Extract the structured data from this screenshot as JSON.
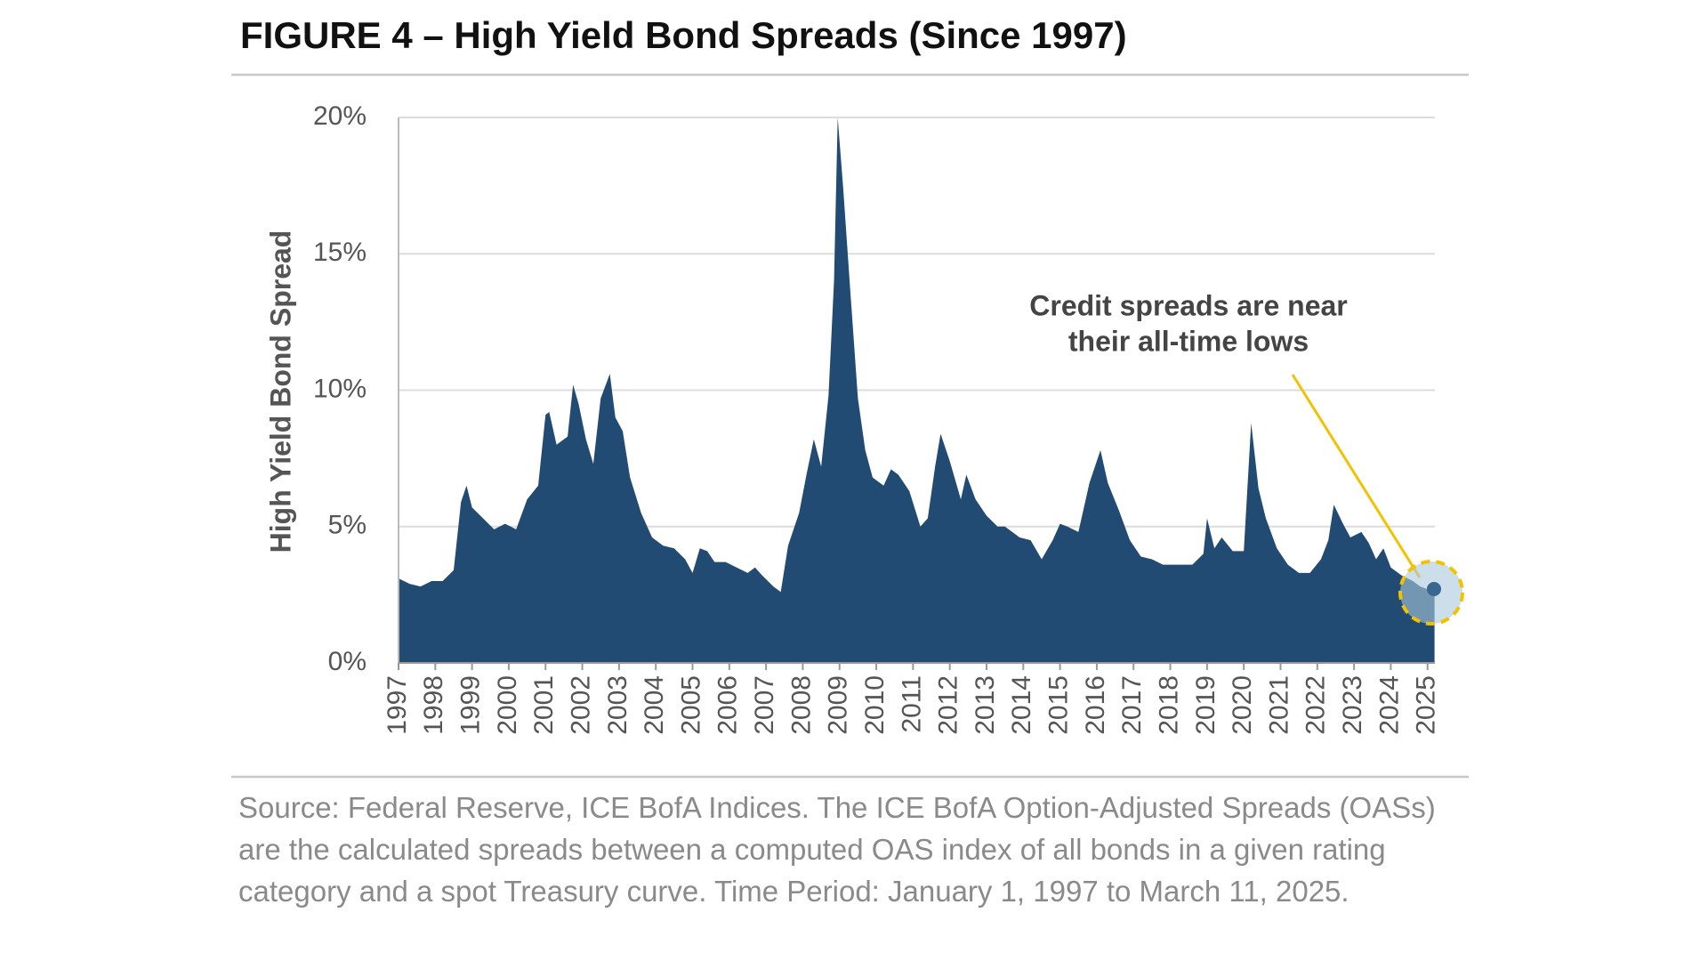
{
  "chart_data": {
    "type": "area",
    "title": "FIGURE 4 – High Yield Bond Spreads  (Since 1997)",
    "y_label": "High Yield Bond Spread",
    "annotation": [
      "Credit spreads are near",
      "their all-time lows"
    ],
    "source": "Source: Federal Reserve, ICE BofA Indices. The ICE BofA Option-Adjusted Spreads (OASs) are the calculated spreads between a computed OAS index of all bonds in a given rating category and a spot Treasury curve. Time Period: January 1, 1997 to March 11, 2025.",
    "color": "#224b74",
    "grid": true,
    "xlim": [
      1997,
      2025.2
    ],
    "xticks": [
      1997,
      1998,
      1999,
      2000,
      2001,
      2002,
      2003,
      2004,
      2005,
      2006,
      2007,
      2008,
      2009,
      2010,
      2011,
      2012,
      2013,
      2014,
      2015,
      2016,
      2017,
      2018,
      2019,
      2020,
      2021,
      2022,
      2023,
      2024,
      2025
    ],
    "ylim": [
      0,
      20
    ],
    "yticks": [
      {
        "value": 0,
        "label": "0%"
      },
      {
        "value": 5,
        "label": "5%"
      },
      {
        "value": 10,
        "label": "10%"
      },
      {
        "value": 15,
        "label": "15%"
      },
      {
        "value": 20,
        "label": "20%"
      }
    ],
    "x": [
      1997.0,
      1997.3,
      1997.6,
      1997.9,
      1998.2,
      1998.5,
      1998.7,
      1998.85,
      1999.0,
      1999.3,
      1999.6,
      1999.9,
      2000.2,
      2000.5,
      2000.8,
      2001.0,
      2001.1,
      2001.3,
      2001.6,
      2001.75,
      2001.9,
      2002.1,
      2002.3,
      2002.5,
      2002.75,
      2002.9,
      2003.1,
      2003.3,
      2003.6,
      2003.9,
      2004.2,
      2004.5,
      2004.8,
      2005.0,
      2005.2,
      2005.4,
      2005.6,
      2005.9,
      2006.2,
      2006.5,
      2006.7,
      2006.9,
      2007.2,
      2007.4,
      2007.6,
      2007.9,
      2008.1,
      2008.3,
      2008.5,
      2008.7,
      2008.85,
      2008.95,
      2009.1,
      2009.3,
      2009.5,
      2009.7,
      2009.9,
      2010.2,
      2010.4,
      2010.6,
      2010.9,
      2011.2,
      2011.4,
      2011.6,
      2011.75,
      2012.0,
      2012.3,
      2012.45,
      2012.7,
      2013.0,
      2013.3,
      2013.5,
      2013.9,
      2014.2,
      2014.5,
      2014.8,
      2015.0,
      2015.2,
      2015.5,
      2015.8,
      2016.1,
      2016.3,
      2016.6,
      2016.9,
      2017.2,
      2017.5,
      2017.8,
      2018.0,
      2018.3,
      2018.6,
      2018.9,
      2019.0,
      2019.2,
      2019.4,
      2019.7,
      2020.0,
      2020.2,
      2020.4,
      2020.6,
      2020.9,
      2021.2,
      2021.5,
      2021.8,
      2022.1,
      2022.3,
      2022.45,
      2022.7,
      2022.9,
      2023.2,
      2023.4,
      2023.6,
      2023.8,
      2024.0,
      2024.3,
      2024.6,
      2024.8,
      2025.0,
      2025.19
    ],
    "values": [
      3.1,
      2.9,
      2.8,
      3.0,
      3.0,
      3.4,
      5.9,
      6.5,
      5.7,
      5.3,
      4.9,
      5.1,
      4.9,
      6.0,
      6.5,
      9.1,
      9.2,
      8.0,
      8.3,
      10.2,
      9.5,
      8.2,
      7.3,
      9.7,
      10.6,
      9.0,
      8.5,
      6.8,
      5.5,
      4.6,
      4.3,
      4.2,
      3.8,
      3.3,
      4.2,
      4.1,
      3.7,
      3.7,
      3.5,
      3.3,
      3.5,
      3.2,
      2.8,
      2.6,
      4.3,
      5.5,
      6.9,
      8.2,
      7.2,
      9.8,
      14.0,
      20.0,
      17.4,
      13.5,
      9.7,
      7.8,
      6.8,
      6.5,
      7.1,
      6.9,
      6.3,
      5.0,
      5.3,
      7.2,
      8.4,
      7.4,
      6.0,
      6.9,
      6.0,
      5.4,
      5.0,
      5.0,
      4.6,
      4.5,
      3.8,
      4.5,
      5.1,
      5.0,
      4.8,
      6.6,
      7.8,
      6.6,
      5.6,
      4.5,
      3.9,
      3.8,
      3.6,
      3.6,
      3.6,
      3.6,
      4.0,
      5.3,
      4.2,
      4.6,
      4.1,
      4.1,
      8.8,
      6.4,
      5.3,
      4.2,
      3.6,
      3.3,
      3.3,
      3.8,
      4.5,
      5.8,
      5.1,
      4.6,
      4.8,
      4.4,
      3.8,
      4.2,
      3.5,
      3.2,
      3.0,
      2.8,
      2.7,
      2.9
    ]
  }
}
